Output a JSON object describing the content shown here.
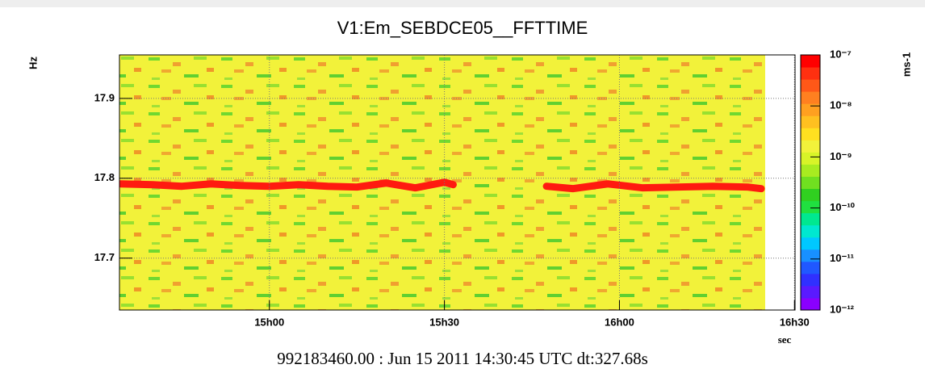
{
  "chart_data": {
    "type": "spectrogram",
    "title": "V1:Em_SEBDCE05__FFTTIME",
    "y_label": "Hz",
    "x_label": "sec",
    "colorbar_label": "ms-1",
    "footer": "992183460.00 : Jun 15 2011 14:30:45 UTC dt:327.68s",
    "background_color": "#f2f23a",
    "series": [
      {
        "color": "#ff1a10",
        "x": [
          34.5,
          40,
          45,
          50,
          55,
          60,
          65,
          70,
          75,
          80,
          85,
          90,
          91.5,
          99,
          107.5,
          112,
          118,
          124,
          130,
          136,
          142,
          144.3
        ],
        "values": [
          17.793,
          17.792,
          17.79,
          17.793,
          17.791,
          17.79,
          17.792,
          17.79,
          17.789,
          17.794,
          17.788,
          17.795,
          17.792,
          null,
          17.79,
          17.787,
          17.793,
          17.788,
          17.789,
          17.79,
          17.789,
          17.787
        ]
      }
    ],
    "xlim": [
      34.3,
      150.1
    ],
    "xticks": [
      {
        "value": 60,
        "label": "15h00"
      },
      {
        "value": 90,
        "label": "15h30"
      },
      {
        "value": 120,
        "label": "16h00"
      },
      {
        "value": 150,
        "label": "16h30"
      }
    ],
    "ylim": [
      17.635,
      17.9545
    ],
    "yticks": [
      17.7,
      17.8,
      17.9
    ],
    "grid": true,
    "colorbar": {
      "log_scale": true,
      "lim": [
        1e-12,
        1e-07
      ],
      "ticks": [
        {
          "value": 1e-07,
          "label": "10⁻⁷"
        },
        {
          "value": 1e-08,
          "label": "10⁻⁸"
        },
        {
          "value": 1e-09,
          "label": "10⁻⁹"
        },
        {
          "value": 1e-10,
          "label": "10⁻¹⁰"
        },
        {
          "value": 1e-11,
          "label": "10⁻¹¹"
        },
        {
          "value": 1e-12,
          "label": "10⁻¹²"
        }
      ],
      "colors": [
        "#8a00ff",
        "#5a1aff",
        "#3030ff",
        "#2058ff",
        "#1890ff",
        "#00c8ff",
        "#00e8d0",
        "#00e890",
        "#20e040",
        "#30d020",
        "#70e020",
        "#a8ec20",
        "#d8f428",
        "#f2f23a",
        "#ffe020",
        "#ffc020",
        "#ffa020",
        "#ff8020",
        "#ff5818",
        "#ff3010",
        "#ff0000"
      ]
    }
  }
}
